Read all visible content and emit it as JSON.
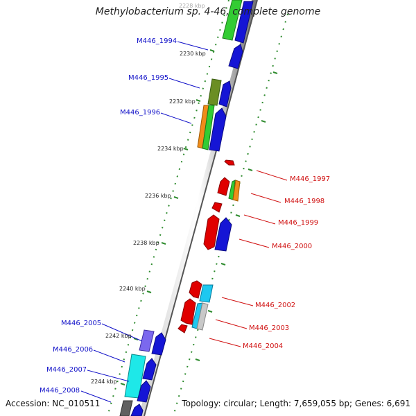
{
  "title": "Methylobacterium sp. 4-46, complete genome",
  "accession": "Accession: NC_010511",
  "topology": "Topology: circular; Length: 7,659,055 bp; Genes: 6,691",
  "colors": {
    "backbone": "#7a7a7a",
    "tick": "#2e8b2e",
    "label_left": "#1010c8",
    "label_right": "#d01010"
  },
  "kbp_labels": [
    {
      "text": "2228 kbp"
    },
    {
      "text": "2230 kbp"
    },
    {
      "text": "2232 kbp"
    },
    {
      "text": "2234 kbp"
    },
    {
      "text": "2236 kbp"
    },
    {
      "text": "2238 kbp"
    },
    {
      "text": "2240 kbp"
    },
    {
      "text": "2242 kbp"
    },
    {
      "text": "2244 kbp"
    }
  ],
  "genes_left": [
    {
      "name": "M446_1994"
    },
    {
      "name": "M446_1995"
    },
    {
      "name": "M446_1996"
    },
    {
      "name": "M446_2005"
    },
    {
      "name": "M446_2006"
    },
    {
      "name": "M446_2007"
    },
    {
      "name": "M446_2008"
    }
  ],
  "genes_right": [
    {
      "name": "M446_1997"
    },
    {
      "name": "M446_1998"
    },
    {
      "name": "M446_1999"
    },
    {
      "name": "M446_2000"
    },
    {
      "name": "M446_2002"
    },
    {
      "name": "M446_2003"
    },
    {
      "name": "M446_2004"
    }
  ]
}
